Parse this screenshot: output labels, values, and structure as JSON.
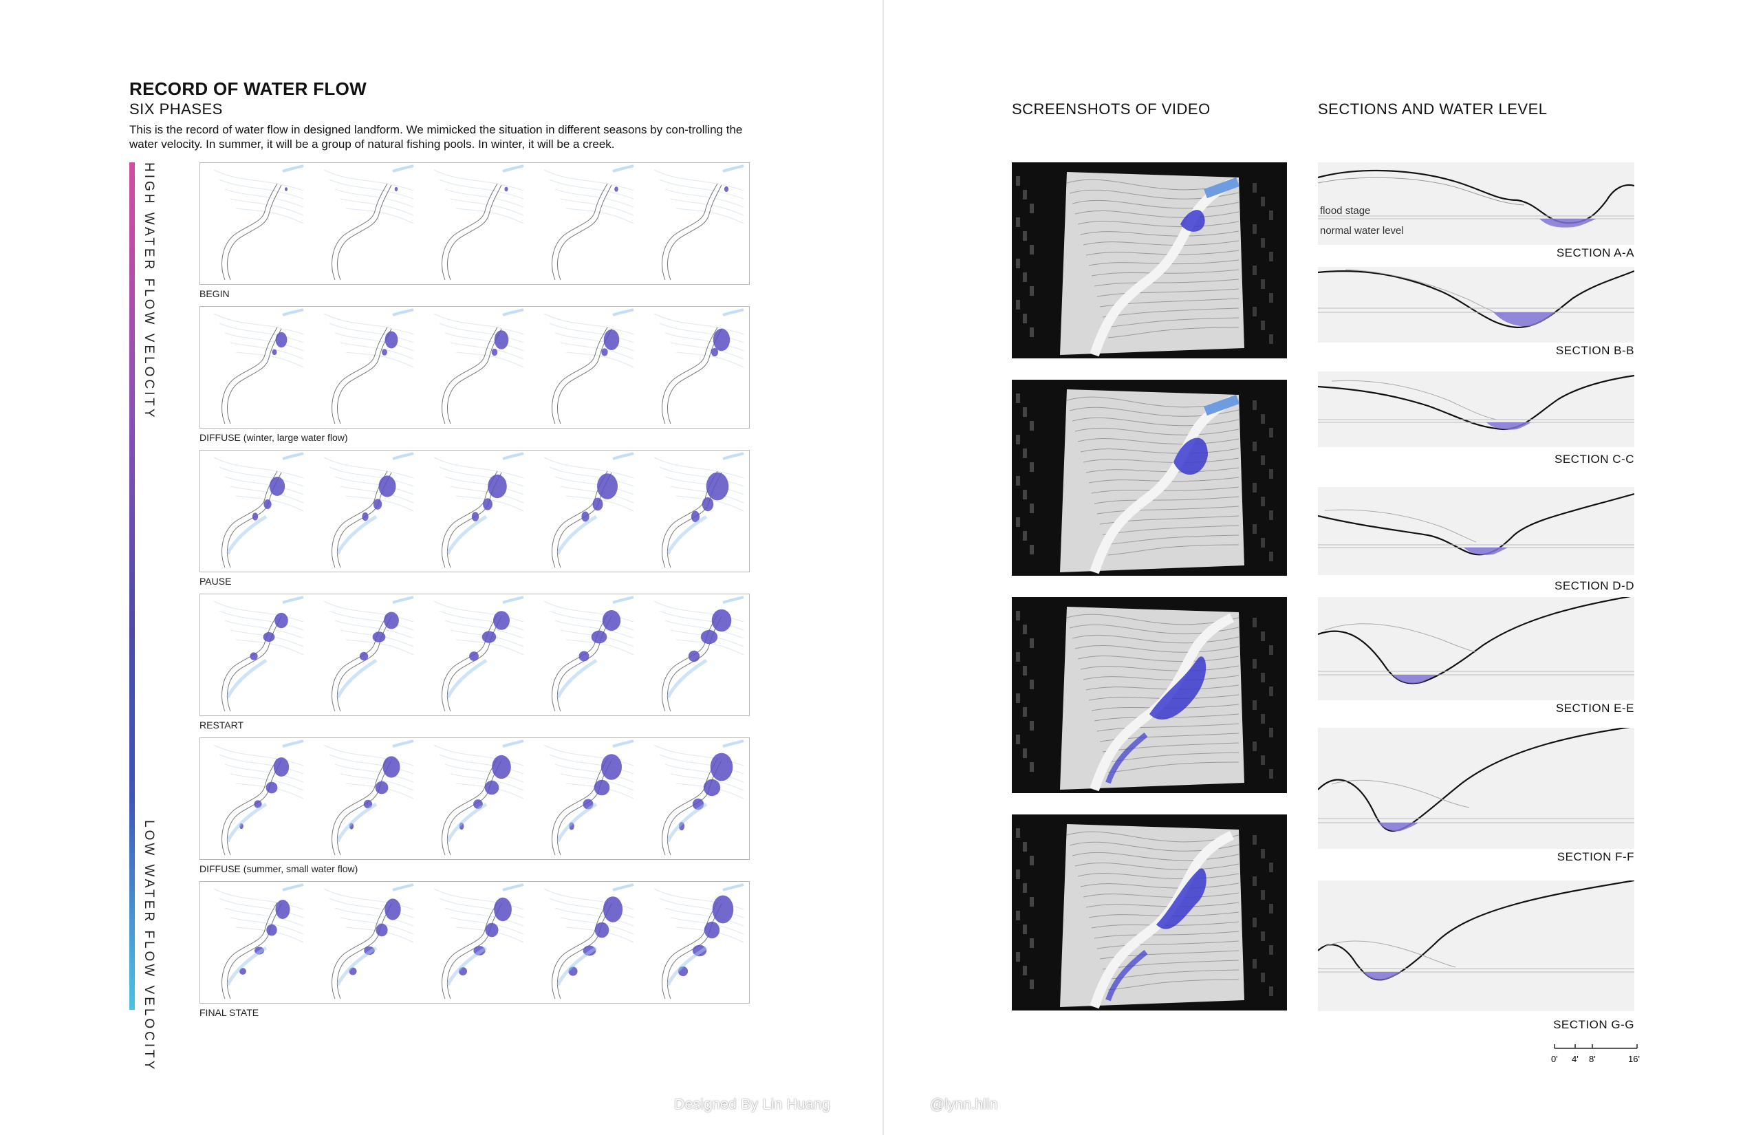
{
  "left": {
    "title": "RECORD OF WATER FLOW",
    "subtitle": "SIX PHASES",
    "description": "This is the record of water flow in designed landform. We mimicked the situation in different seasons by con-trolling the water velocity. In summer, it will be a group of natural fishing pools. In winter, it will be a creek.",
    "velocity_high": "HIGH  WATER  FLOW  VELOCITY",
    "velocity_low": "LOW  WATER  FLOW  VELOCITY",
    "phases": [
      {
        "label": "BEGIN"
      },
      {
        "label": "DIFFUSE (winter, large water flow)"
      },
      {
        "label": "PAUSE"
      },
      {
        "label": "RESTART"
      },
      {
        "label": "DIFFUSE (summer, small water flow)"
      },
      {
        "label": "FINAL STATE"
      }
    ],
    "credit": "Designed By Lin Huang"
  },
  "right": {
    "screenshots_heading": "SCREENSHOTS OF VIDEO",
    "sections_heading": "SECTIONS AND WATER LEVEL",
    "flood_stage": "flood stage",
    "normal_water_level": "normal water level",
    "sections": [
      "SECTION  A-A",
      "SECTION  B-B",
      "SECTION  C-C",
      "SECTION  D-D",
      "SECTION  E-E",
      "SECTION  F-F",
      "SECTION  G-G"
    ],
    "scale": [
      "0'",
      "4'",
      "8'",
      "16'"
    ],
    "credit": "@lynn.hlin"
  },
  "colors": {
    "water": "#5a4fc4",
    "water_light": "#9fc7ee",
    "gradient_top": "#d44ba2",
    "gradient_bottom": "#4ac4e6"
  }
}
